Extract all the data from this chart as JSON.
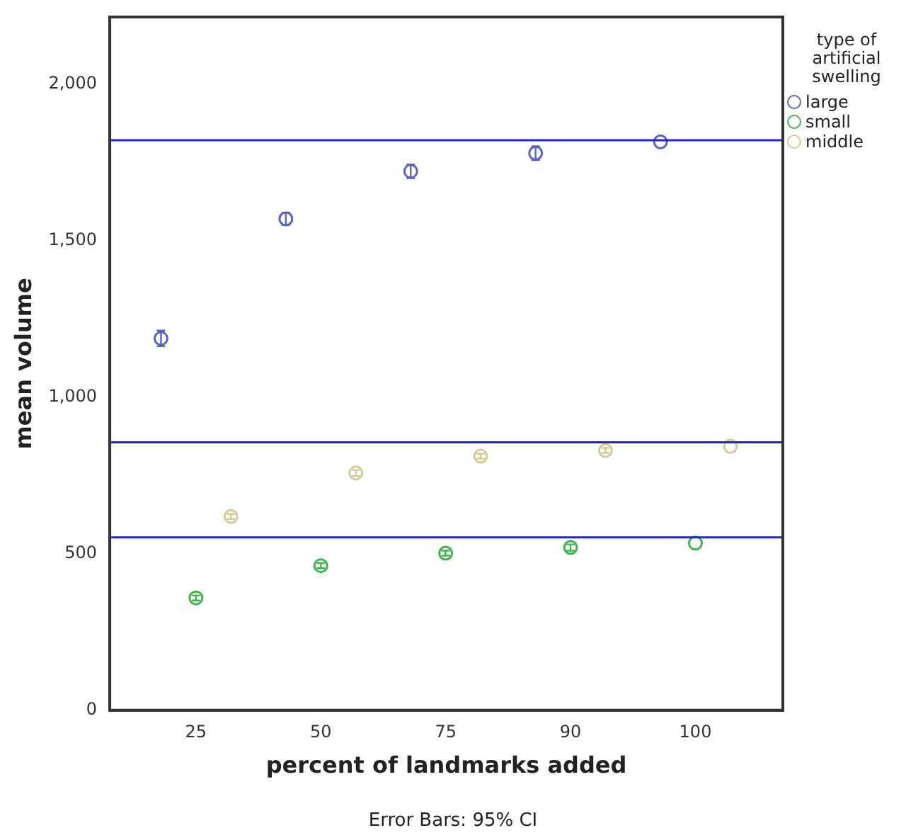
{
  "chart_data": {
    "type": "scatter",
    "xlabel": "percent of landmarks added",
    "ylabel": "mean volume",
    "legend_title": "type of artificial swelling",
    "categories": [
      "25",
      "50",
      "75",
      "90",
      "100"
    ],
    "series": [
      {
        "name": "large",
        "color": "#5563c1",
        "values": [
          1188,
          1570,
          1722,
          1780,
          1816
        ],
        "errors": [
          25,
          20,
          22,
          22,
          null
        ]
      },
      {
        "name": "small",
        "color": "#3cb54a",
        "values": [
          359,
          462,
          502,
          520,
          534
        ],
        "errors": [
          8,
          8,
          8,
          10,
          null
        ]
      },
      {
        "name": "middle",
        "color": "#d4cc94",
        "values": [
          619,
          758,
          812,
          830,
          843
        ],
        "errors": [
          8,
          10,
          8,
          8,
          null
        ]
      }
    ],
    "ylim": [
      0,
      2215
    ],
    "yticks": [
      0,
      500,
      {
        "value": 1000,
        "label": "1,000"
      },
      {
        "value": 1500,
        "label": "1,500"
      },
      {
        "value": 2000,
        "label": "2,000"
      }
    ],
    "ref_lines": [
      {
        "axis": "y",
        "value": 1821,
        "color": "#2020e0"
      },
      {
        "axis": "y",
        "value": 856,
        "color": "#2020e0"
      },
      {
        "axis": "y",
        "value": 552,
        "color": "#2020e0"
      }
    ],
    "grid": false,
    "legend": "top right",
    "marker": "circle",
    "annotations": [
      "Error Bars: 95% CI"
    ]
  }
}
